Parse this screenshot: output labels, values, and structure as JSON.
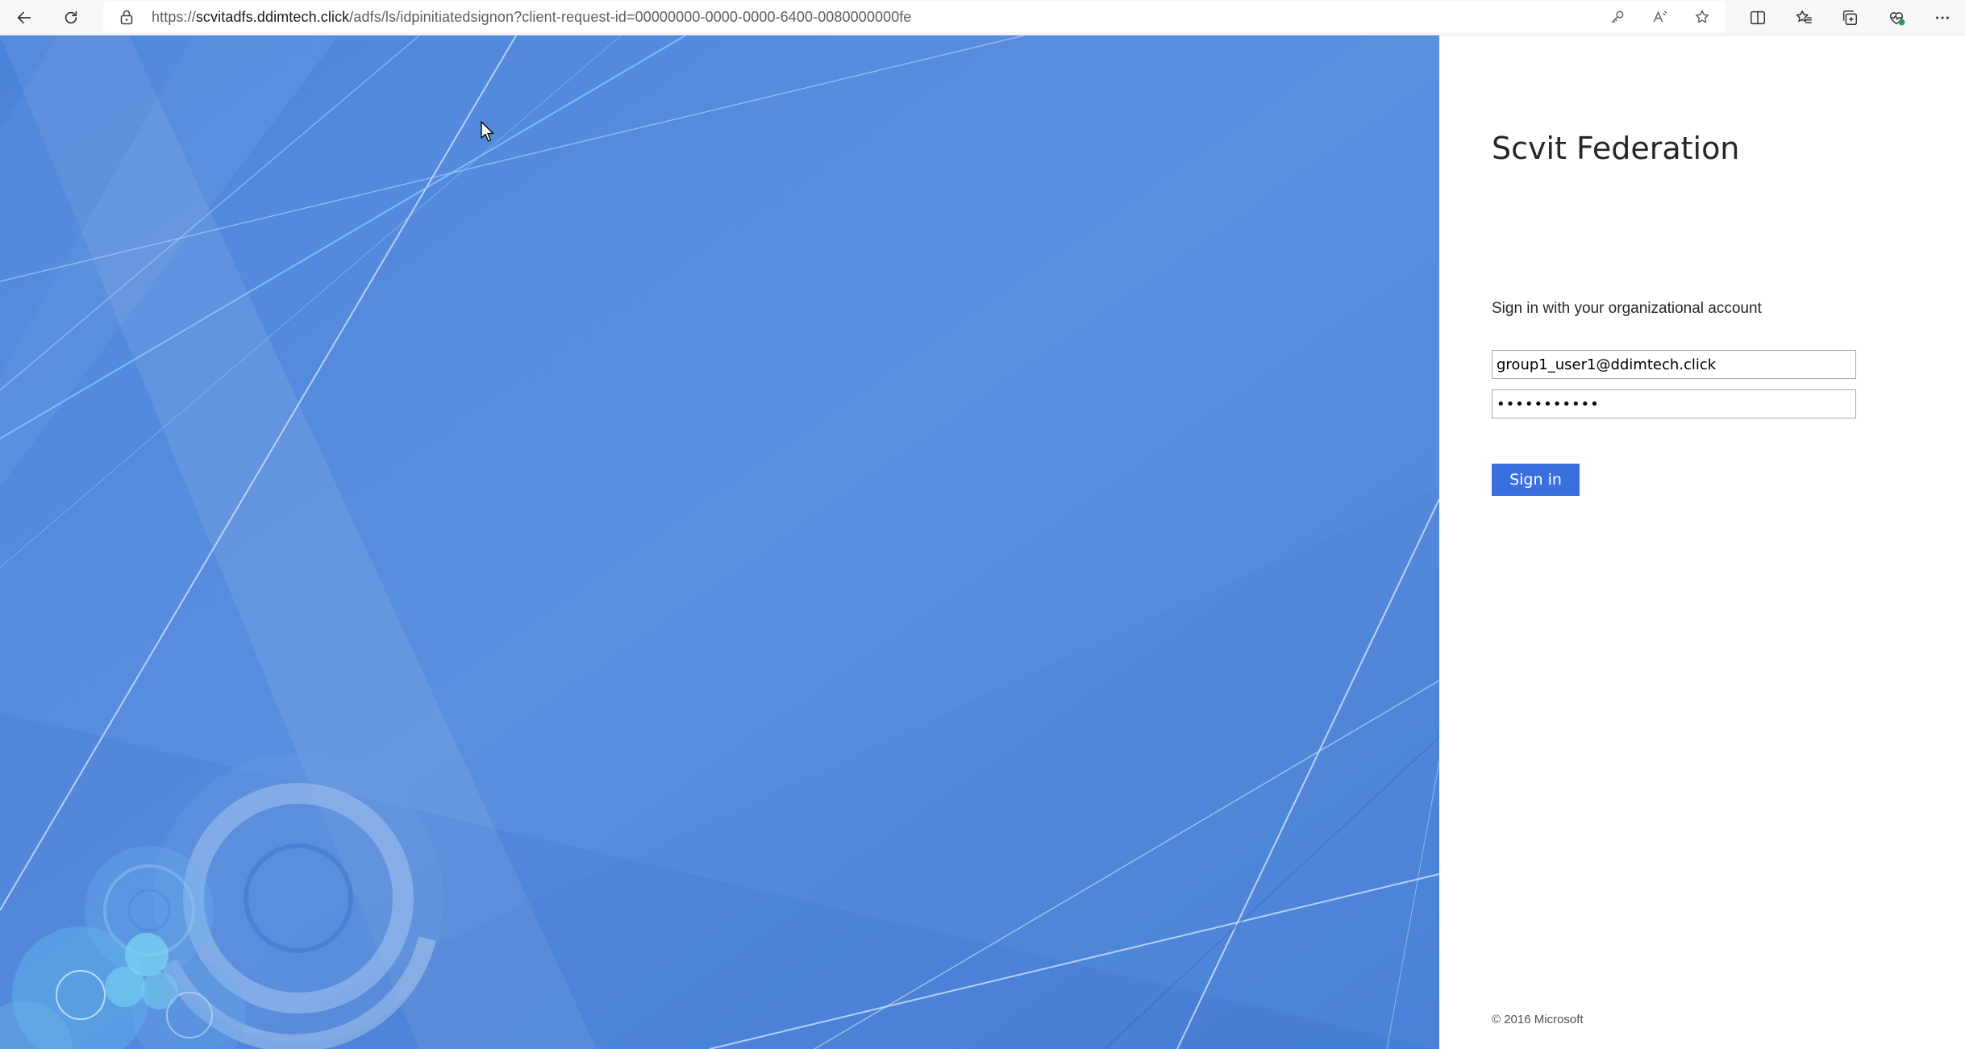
{
  "browser": {
    "url_scheme": "https://",
    "url_host": "scvitadfs.ddimtech.click",
    "url_path": "/adfs/ls/idpinitiatedsignon?client-request-id=00000000-0000-0000-6400-0080000000fe",
    "icons": {
      "back": "back-arrow-icon",
      "refresh": "refresh-icon",
      "lock": "lock-icon",
      "password_key": "key-icon",
      "read_aloud": "read-aloud-icon",
      "favorite": "star-icon",
      "split_screen": "split-screen-icon",
      "favorites": "favorites-icon",
      "collections": "collections-icon",
      "browser_essentials": "heart-pulse-icon",
      "more": "more-icon"
    }
  },
  "signin": {
    "company_name": "Scvit Federation",
    "heading": "Sign in with your organizational account",
    "username_value": "group1_user1@ddimtech.click",
    "password_value": "•••••••••••",
    "submit_label": "Sign in",
    "copyright": "© 2016 Microsoft"
  },
  "colors": {
    "illustration_background": "#5a8fde",
    "button": "#3a6fe0",
    "panel": "#ffffff"
  }
}
